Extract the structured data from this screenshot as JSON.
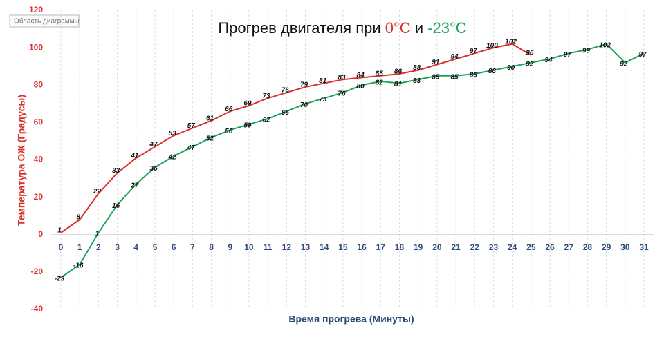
{
  "chart_data": {
    "type": "line",
    "title_parts": [
      {
        "text": "Прогрев двигателя при ",
        "color": "#111111"
      },
      {
        "text": "0°С",
        "color": "#d9302c"
      },
      {
        "text": " и ",
        "color": "#111111"
      },
      {
        "text": "-23°С",
        "color": "#1aa55a"
      }
    ],
    "tooltip": "Область диаграммы",
    "x_label": "Время прогрева (Минуты)",
    "y_label": "Температура ОЖ (Градусы)",
    "categories": [
      0,
      1,
      2,
      3,
      4,
      5,
      6,
      7,
      8,
      9,
      10,
      11,
      12,
      13,
      14,
      15,
      16,
      17,
      18,
      19,
      20,
      21,
      22,
      23,
      24,
      25,
      26,
      27,
      28,
      29,
      30,
      31
    ],
    "series": [
      {
        "color": "#d9302c",
        "values": [
          1,
          8,
          22,
          33,
          41,
          47,
          53,
          57,
          61,
          66,
          69,
          73,
          76,
          79,
          81,
          83,
          84,
          85,
          86,
          88,
          91,
          94,
          97,
          100,
          102,
          96,
          null,
          null,
          null,
          null,
          null,
          null
        ]
      },
      {
        "color": "#1aa55a",
        "values": [
          -23,
          -16,
          1,
          16,
          27,
          36,
          42,
          47,
          52,
          56,
          59,
          62,
          66,
          70,
          73,
          76,
          80,
          82,
          81,
          83,
          85,
          85,
          86,
          88,
          90,
          92,
          94,
          97,
          99,
          102,
          92,
          97
        ]
      }
    ],
    "ylim": [
      -40,
      120
    ],
    "yticks": [
      -40,
      -20,
      0,
      20,
      40,
      60,
      80,
      100,
      120
    ],
    "y_axis_color": "#d9302c",
    "x_axis_color": "#2e4a7a",
    "grid": true
  }
}
